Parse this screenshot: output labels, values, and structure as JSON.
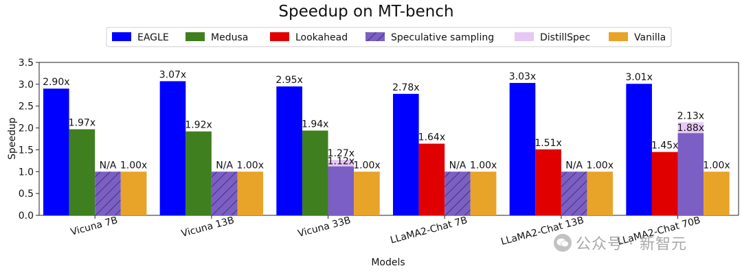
{
  "chart_data": {
    "type": "bar",
    "title": "Speedup on MT-bench",
    "xlabel": "Models",
    "ylabel": "Speedup",
    "ylim": [
      0,
      3.5
    ],
    "yticks": [
      "0.0",
      "0.5",
      "1.0",
      "1.5",
      "2.0",
      "2.5",
      "3.0",
      "3.5"
    ],
    "categories": [
      "Vicuna 7B",
      "Vicuna 13B",
      "Vicuna 33B",
      "LLaMA2-Chat 7B",
      "LLaMA2-Chat 13B",
      "LLaMA2-Chat 70B"
    ],
    "legend_position": "top-center",
    "series": [
      {
        "name": "EAGLE",
        "color": "#0000ff",
        "values": [
          2.9,
          3.07,
          2.95,
          2.78,
          3.03,
          3.01
        ],
        "labels": [
          "2.90x",
          "3.07x",
          "2.95x",
          "2.78x",
          "3.03x",
          "3.01x"
        ]
      },
      {
        "name": "Medusa",
        "color": "#3f7f1f",
        "values": [
          1.97,
          1.92,
          1.94,
          null,
          null,
          null
        ],
        "labels": [
          "1.97x",
          "1.92x",
          "1.94x",
          null,
          null,
          null
        ]
      },
      {
        "name": "Lookahead",
        "color": "#e00000",
        "values": [
          null,
          null,
          null,
          1.64,
          1.51,
          1.45
        ],
        "labels": [
          null,
          null,
          null,
          "1.64x",
          "1.51x",
          "1.45x"
        ]
      },
      {
        "name": "Speculative sampling",
        "color": "#7c5fc4",
        "values": [
          1.0,
          1.0,
          1.12,
          1.0,
          1.0,
          1.88
        ],
        "labels": [
          "N/A",
          "N/A",
          "1.12x",
          "N/A",
          "N/A",
          "1.88x"
        ],
        "hatched": [
          true,
          true,
          false,
          true,
          true,
          false
        ]
      },
      {
        "name": "DistillSpec",
        "color": "#e6c8f5",
        "values": [
          null,
          null,
          1.27,
          null,
          null,
          2.13
        ],
        "labels": [
          null,
          null,
          "1.27x",
          null,
          null,
          "2.13x"
        ]
      },
      {
        "name": "Vanilla",
        "color": "#e8a428",
        "values": [
          1.0,
          1.0,
          1.0,
          1.0,
          1.0,
          1.0
        ],
        "labels": [
          "1.00x",
          "1.00x",
          "1.00x",
          "1.00x",
          "1.00x",
          "1.00x"
        ]
      }
    ]
  },
  "watermark": {
    "icon": "wechat-icon",
    "text": "公众号 · 新智元"
  }
}
